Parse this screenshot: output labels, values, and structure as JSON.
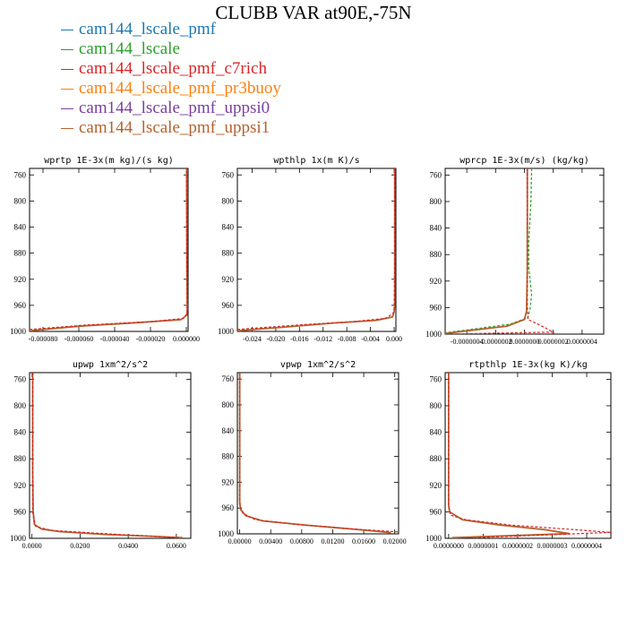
{
  "title": "CLUBB VAR at90E,-75N",
  "legend": [
    {
      "name": "cam144_lscale_pmf",
      "color": "#1f77b4"
    },
    {
      "name": "cam144_lscale",
      "color": "#2ca02c"
    },
    {
      "name": "cam144_lscale_pmf_c7rich",
      "color": "#d62728"
    },
    {
      "name": "cam144_lscale_pmf_pr3buoy",
      "color": "#ff7f0e"
    },
    {
      "name": "cam144_lscale_pmf_uppsi0",
      "color": "#7b3f9e"
    },
    {
      "name": "cam144_lscale_pmf_uppsi1",
      "color": "#b5612e"
    }
  ],
  "chart_data": [
    {
      "type": "line",
      "title": "wprtp  1E-3x(m kg)/(s kg)",
      "xlim": [
        -8.75e-05,
        1e-06
      ],
      "ylim": [
        1000,
        750
      ],
      "yticks": [
        760,
        800,
        840,
        880,
        920,
        960,
        1000
      ],
      "xticks": [
        -8e-05,
        -6e-05,
        -4e-05,
        -2e-05,
        0.0
      ],
      "xtick_labels": [
        "-0.000080",
        "-0.000060",
        "-0.000040",
        "-0.000020",
        "0.000000"
      ],
      "series": [
        {
          "color": "#b5612e",
          "points": [
            [
              -8.75e-05,
              999
            ],
            [
              -6e-05,
              992
            ],
            [
              -3e-05,
              987
            ],
            [
              -3e-06,
              982
            ],
            [
              3e-07,
              975
            ],
            [
              5e-07,
              965
            ],
            [
              3e-07,
              900
            ],
            [
              2e-07,
              760
            ],
            [
              2e-07,
              750
            ]
          ]
        },
        {
          "color": "#d62728",
          "dashed": true,
          "points": [
            [
              -8.75e-05,
              997
            ],
            [
              -5.5e-05,
              990
            ],
            [
              -2e-05,
              985
            ],
            [
              -1.5e-06,
              980
            ],
            [
              5e-07,
              972
            ],
            [
              5e-07,
              960
            ],
            [
              3e-07,
              900
            ],
            [
              2e-07,
              750
            ]
          ]
        }
      ]
    },
    {
      "type": "line",
      "title": "wpthlp  1x(m K)/s",
      "xlim": [
        -0.0265,
        0.0003
      ],
      "ylim": [
        1000,
        750
      ],
      "yticks": [
        760,
        800,
        840,
        880,
        920,
        960,
        1000
      ],
      "xticks": [
        -0.024,
        -0.02,
        -0.016,
        -0.012,
        -0.008,
        -0.004,
        0.0
      ],
      "xtick_labels": [
        "-0.024",
        "-0.020",
        "-0.016",
        "-0.012",
        "-0.008",
        "-0.004",
        "0.000"
      ],
      "series": [
        {
          "color": "#b5612e",
          "points": [
            [
              -0.0265,
              999
            ],
            [
              -0.018,
              993
            ],
            [
              -0.01,
              987
            ],
            [
              -0.003,
              983
            ],
            [
              -0.0003,
              978
            ],
            [
              0.0,
              970
            ],
            [
              0.0001,
              960
            ],
            [
              0.0001,
              900
            ],
            [
              0.0001,
              750
            ]
          ]
        },
        {
          "color": "#d62728",
          "dashed": true,
          "points": [
            [
              -0.0265,
              997
            ],
            [
              -0.016,
              990
            ],
            [
              -0.007,
              985
            ],
            [
              -0.0015,
              980
            ],
            [
              -0.0002,
              973
            ],
            [
              0.0,
              965
            ],
            [
              0.0001,
              900
            ],
            [
              0.0001,
              750
            ]
          ]
        }
      ]
    },
    {
      "type": "line",
      "title": "wprcp  1E-3x(m/s) (kg/kg)",
      "xlim": [
        -5.5e-07,
        5.5e-07
      ],
      "ylim": [
        1000,
        750
      ],
      "yticks": [
        760,
        800,
        840,
        880,
        920,
        960,
        1000
      ],
      "xticks": [
        -4e-07,
        -2e-07,
        0.0,
        2e-07,
        4e-07
      ],
      "xtick_labels": [
        "-0.0000004",
        "-0.0000002",
        "0.0000000",
        "0.0000002",
        "0.0000004"
      ],
      "series": [
        {
          "color": "#2ca02c",
          "dashed": true,
          "points": [
            [
              5e-08,
              750
            ],
            [
              4.5e-08,
              800
            ],
            [
              3e-08,
              860
            ],
            [
              3e-08,
              900
            ],
            [
              5e-08,
              940
            ],
            [
              4e-08,
              960
            ],
            [
              2.5e-08,
              975
            ],
            [
              -1e-07,
              985
            ],
            [
              -5.5e-07,
              998
            ]
          ]
        },
        {
          "color": "#b5612e",
          "points": [
            [
              2e-08,
              750
            ],
            [
              2e-08,
              900
            ],
            [
              1.5e-08,
              965
            ],
            [
              0.0,
              978
            ],
            [
              -1.2e-07,
              988
            ],
            [
              -5.5e-07,
              999
            ]
          ]
        },
        {
          "color": "#d62728",
          "dashed": true,
          "points": [
            [
              2e-08,
              750
            ],
            [
              2e-08,
              960
            ],
            [
              2.5e-08,
              978
            ],
            [
              1.4e-07,
              990
            ],
            [
              2e-07,
              997
            ],
            [
              -5.5e-07,
              1000
            ]
          ]
        }
      ]
    },
    {
      "type": "line",
      "title": "upwp  1xm^2/s^2",
      "xlim": [
        -0.001,
        0.066
      ],
      "ylim": [
        1000,
        750
      ],
      "yticks": [
        760,
        800,
        840,
        880,
        920,
        960,
        1000
      ],
      "xticks": [
        0.0,
        0.02,
        0.04,
        0.06
      ],
      "xtick_labels": [
        "0.0000",
        "0.0200",
        "0.0400",
        "0.0600"
      ],
      "series": [
        {
          "color": "#b5612e",
          "points": [
            [
              0.0003,
              750
            ],
            [
              0.0003,
              900
            ],
            [
              0.0005,
              960
            ],
            [
              0.001,
              979
            ],
            [
              0.004,
              986
            ],
            [
              0.012,
              990
            ],
            [
              0.03,
              994
            ],
            [
              0.05,
              997
            ],
            [
              0.0625,
              999
            ]
          ]
        },
        {
          "color": "#d62728",
          "dashed": true,
          "points": [
            [
              0.0003,
              750
            ],
            [
              0.0003,
              960
            ],
            [
              0.0015,
              982
            ],
            [
              0.008,
              988
            ],
            [
              0.035,
              994
            ],
            [
              0.0625,
              999
            ]
          ]
        }
      ]
    },
    {
      "type": "line",
      "title": "vpwp  1xm^2/s^2",
      "xlim": [
        -0.0003,
        0.0205
      ],
      "ylim": [
        1000,
        750
      ],
      "yticks": [
        760,
        800,
        840,
        880,
        920,
        960,
        1000
      ],
      "xticks": [
        0.0,
        0.004,
        0.008,
        0.012,
        0.016,
        0.02
      ],
      "xtick_labels": [
        "0.00000",
        "0.00400",
        "0.00800",
        "0.01200",
        "0.01600",
        "0.02000"
      ],
      "series": [
        {
          "color": "#b5612e",
          "points": [
            [
              0.0,
              750
            ],
            [
              0.0,
              950
            ],
            [
              0.0001,
              962
            ],
            [
              0.0008,
              972
            ],
            [
              0.003,
              980
            ],
            [
              0.009,
              987
            ],
            [
              0.015,
              993
            ],
            [
              0.0195,
              998
            ]
          ]
        },
        {
          "color": "#d62728",
          "dashed": true,
          "points": [
            [
              0.0,
              750
            ],
            [
              0.0,
              955
            ],
            [
              0.0004,
              968
            ],
            [
              0.002,
              978
            ],
            [
              0.007,
              985
            ],
            [
              0.014,
              992
            ],
            [
              0.0205,
              997
            ]
          ]
        }
      ]
    },
    {
      "type": "line",
      "title": "rtpthlp  1E-3x(kg K)/kg",
      "xlim": [
        -1e-08,
        4.7e-07
      ],
      "ylim": [
        1000,
        750
      ],
      "yticks": [
        760,
        800,
        840,
        880,
        920,
        960,
        1000
      ],
      "xticks": [
        0.0,
        1e-07,
        2e-07,
        3e-07,
        4e-07
      ],
      "xtick_labels": [
        "0.0000000",
        "0.0000001",
        "0.0000002",
        "0.0000003",
        "0.0000004"
      ],
      "series": [
        {
          "color": "#b5612e",
          "points": [
            [
              0.0,
              750
            ],
            [
              0.0,
              950
            ],
            [
              3e-09,
              960
            ],
            [
              4e-08,
              972
            ],
            [
              1.5e-07,
              980
            ],
            [
              2.8e-07,
              987
            ],
            [
              3.5e-07,
              993
            ],
            [
              1e-08,
              999
            ]
          ]
        },
        {
          "color": "#d62728",
          "dashed": true,
          "points": [
            [
              0.0,
              750
            ],
            [
              0.0,
              950
            ],
            [
              5e-09,
              965
            ],
            [
              5e-08,
              972
            ],
            [
              1.8e-07,
              980
            ],
            [
              3.4e-07,
              986
            ],
            [
              4.7e-07,
              991
            ],
            [
              8e-08,
              999
            ]
          ]
        }
      ]
    }
  ]
}
